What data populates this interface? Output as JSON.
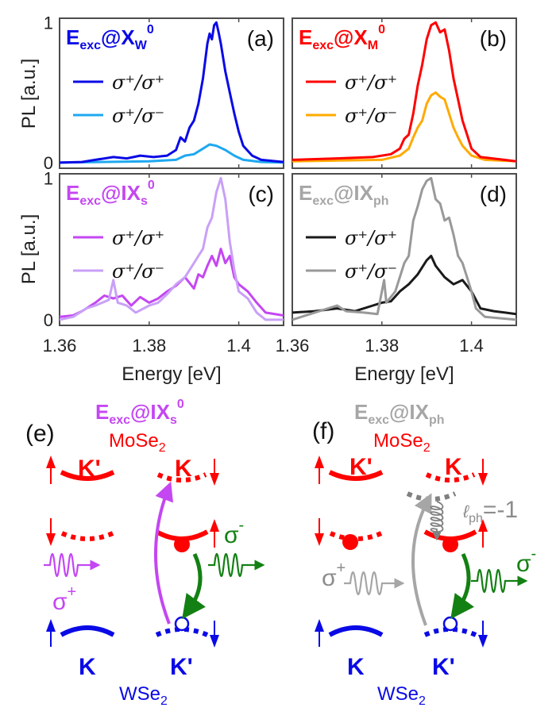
{
  "chart_data": [
    {
      "type": "line",
      "panel_label": "(a)",
      "annotation": {
        "main": "E",
        "sub": "exc",
        "at": "@X",
        "sub2": "W",
        "sup": "0",
        "color": "#0a0ae6"
      },
      "xlabel": "",
      "ylabel": "PL [a.u.]",
      "xlim": [
        1.36,
        1.41
      ],
      "ylim": [
        -0.04,
        1.03
      ],
      "yticks": [
        0,
        1
      ],
      "ytick_labels": [
        "0",
        "1"
      ],
      "xticks": [
        1.36,
        1.38,
        1.4
      ],
      "xtick_labels": [],
      "legend": "top-left",
      "series": [
        {
          "name": "σ⁺/σ⁺",
          "color": "#0a0ae6",
          "points": [
            [
              1.36,
              0
            ],
            [
              1.365,
              0.005
            ],
            [
              1.368,
              0.02
            ],
            [
              1.372,
              0.04
            ],
            [
              1.375,
              0.03
            ],
            [
              1.378,
              0.05
            ],
            [
              1.381,
              0.04
            ],
            [
              1.384,
              0.05
            ],
            [
              1.386,
              0.09
            ],
            [
              1.387,
              0.18
            ],
            [
              1.388,
              0.15
            ],
            [
              1.389,
              0.25
            ],
            [
              1.39,
              0.3
            ],
            [
              1.391,
              0.42
            ],
            [
              1.392,
              0.6
            ],
            [
              1.393,
              0.85
            ],
            [
              1.3935,
              0.92
            ],
            [
              1.394,
              0.88
            ],
            [
              1.3945,
              0.98
            ],
            [
              1.395,
              1.0
            ],
            [
              1.3955,
              0.93
            ],
            [
              1.396,
              0.85
            ],
            [
              1.397,
              0.65
            ],
            [
              1.398,
              0.5
            ],
            [
              1.399,
              0.35
            ],
            [
              1.4,
              0.22
            ],
            [
              1.401,
              0.12
            ],
            [
              1.403,
              0.05
            ],
            [
              1.405,
              0.02
            ],
            [
              1.41,
              0.005
            ]
          ]
        },
        {
          "name": "σ⁺/σ⁻",
          "color": "#1ea8f0",
          "points": [
            [
              1.36,
              0
            ],
            [
              1.38,
              0.01
            ],
            [
              1.386,
              0.02
            ],
            [
              1.388,
              0.05
            ],
            [
              1.39,
              0.06
            ],
            [
              1.392,
              0.1
            ],
            [
              1.3935,
              0.13
            ],
            [
              1.395,
              0.12
            ],
            [
              1.397,
              0.09
            ],
            [
              1.399,
              0.05
            ],
            [
              1.401,
              0.02
            ],
            [
              1.405,
              0.005
            ],
            [
              1.41,
              0
            ]
          ]
        }
      ]
    },
    {
      "type": "line",
      "panel_label": "(b)",
      "annotation": {
        "main": "E",
        "sub": "exc",
        "at": "@X",
        "sub2": "M",
        "sup": "0",
        "color": "#ff0000"
      },
      "xlabel": "",
      "ylabel": "",
      "xlim": [
        1.36,
        1.41
      ],
      "ylim": [
        -0.04,
        1.03
      ],
      "yticks": [
        0,
        1
      ],
      "ytick_labels": [],
      "xticks": [
        1.36,
        1.38,
        1.4
      ],
      "xtick_labels": [],
      "legend": "top-left",
      "series": [
        {
          "name": "σ⁺/σ⁺",
          "color": "#ff0000",
          "points": [
            [
              1.36,
              0.02
            ],
            [
              1.37,
              0.03
            ],
            [
              1.378,
              0.04
            ],
            [
              1.382,
              0.06
            ],
            [
              1.384,
              0.1
            ],
            [
              1.385,
              0.17
            ],
            [
              1.386,
              0.2
            ],
            [
              1.387,
              0.35
            ],
            [
              1.388,
              0.55
            ],
            [
              1.389,
              0.7
            ],
            [
              1.39,
              0.88
            ],
            [
              1.391,
              0.98
            ],
            [
              1.392,
              1.0
            ],
            [
              1.393,
              0.93
            ],
            [
              1.394,
              0.95
            ],
            [
              1.395,
              0.8
            ],
            [
              1.396,
              0.6
            ],
            [
              1.397,
              0.45
            ],
            [
              1.398,
              0.3
            ],
            [
              1.399,
              0.2
            ],
            [
              1.4,
              0.1
            ],
            [
              1.402,
              0.04
            ],
            [
              1.41,
              0.01
            ]
          ]
        },
        {
          "name": "σ⁺/σ⁻",
          "color": "#ffaa00",
          "points": [
            [
              1.36,
              0.01
            ],
            [
              1.38,
              0.02
            ],
            [
              1.384,
              0.05
            ],
            [
              1.386,
              0.1
            ],
            [
              1.387,
              0.18
            ],
            [
              1.388,
              0.25
            ],
            [
              1.389,
              0.3
            ],
            [
              1.39,
              0.42
            ],
            [
              1.391,
              0.48
            ],
            [
              1.392,
              0.5
            ],
            [
              1.393,
              0.47
            ],
            [
              1.394,
              0.45
            ],
            [
              1.395,
              0.35
            ],
            [
              1.396,
              0.25
            ],
            [
              1.397,
              0.18
            ],
            [
              1.398,
              0.12
            ],
            [
              1.4,
              0.05
            ],
            [
              1.403,
              0.02
            ],
            [
              1.41,
              0.01
            ]
          ]
        }
      ]
    },
    {
      "type": "line",
      "panel_label": "(c)",
      "annotation": {
        "main": "E",
        "sub": "exc",
        "at": "@IX",
        "sub2": "s",
        "sup": "0",
        "color": "#c447f2"
      },
      "xlabel": "Energy [eV]",
      "ylabel": "PL [a.u.]",
      "xlim": [
        1.36,
        1.41
      ],
      "ylim": [
        -0.04,
        1.03
      ],
      "yticks": [
        0,
        1
      ],
      "ytick_labels": [
        "0",
        "1"
      ],
      "xticks": [
        1.36,
        1.38,
        1.4
      ],
      "xtick_labels": [
        "1.36",
        "1.38",
        "1.4"
      ],
      "legend": "top-left",
      "series": [
        {
          "name": "σ⁺/σ⁺",
          "color": "#c447f2",
          "points": [
            [
              1.36,
              0.02
            ],
            [
              1.363,
              0.03
            ],
            [
              1.365,
              0.06
            ],
            [
              1.368,
              0.12
            ],
            [
              1.37,
              0.17
            ],
            [
              1.372,
              0.15
            ],
            [
              1.374,
              0.17
            ],
            [
              1.376,
              0.1
            ],
            [
              1.378,
              0.16
            ],
            [
              1.38,
              0.12
            ],
            [
              1.382,
              0.15
            ],
            [
              1.384,
              0.2
            ],
            [
              1.386,
              0.24
            ],
            [
              1.388,
              0.3
            ],
            [
              1.39,
              0.22
            ],
            [
              1.391,
              0.32
            ],
            [
              1.392,
              0.3
            ],
            [
              1.393,
              0.38
            ],
            [
              1.394,
              0.45
            ],
            [
              1.395,
              0.38
            ],
            [
              1.396,
              0.5
            ],
            [
              1.397,
              0.4
            ],
            [
              1.398,
              0.45
            ],
            [
              1.399,
              0.3
            ],
            [
              1.4,
              0.25
            ],
            [
              1.402,
              0.2
            ],
            [
              1.404,
              0.12
            ],
            [
              1.406,
              0.05
            ],
            [
              1.41,
              0.03
            ]
          ]
        },
        {
          "name": "σ⁺/σ⁻",
          "color": "#c9a0f7",
          "points": [
            [
              1.36,
              0
            ],
            [
              1.363,
              0.02
            ],
            [
              1.366,
              0.08
            ],
            [
              1.368,
              0.1
            ],
            [
              1.371,
              0.14
            ],
            [
              1.372,
              0.28
            ],
            [
              1.373,
              0.12
            ],
            [
              1.375,
              0.1
            ],
            [
              1.377,
              0.05
            ],
            [
              1.38,
              0.1
            ],
            [
              1.382,
              0.12
            ],
            [
              1.384,
              0.18
            ],
            [
              1.386,
              0.25
            ],
            [
              1.388,
              0.3
            ],
            [
              1.39,
              0.4
            ],
            [
              1.391,
              0.45
            ],
            [
              1.392,
              0.5
            ],
            [
              1.393,
              0.65
            ],
            [
              1.394,
              0.72
            ],
            [
              1.395,
              0.9
            ],
            [
              1.396,
              1.0
            ],
            [
              1.397,
              0.85
            ],
            [
              1.398,
              0.55
            ],
            [
              1.399,
              0.35
            ],
            [
              1.4,
              0.2
            ],
            [
              1.402,
              0.15
            ],
            [
              1.404,
              0.05
            ],
            [
              1.406,
              0
            ],
            [
              1.41,
              0
            ]
          ]
        }
      ]
    },
    {
      "type": "line",
      "panel_label": "(d)",
      "annotation": {
        "main": "E",
        "sub": "exc",
        "at": "@IX",
        "sub2": "ph",
        "sup": "",
        "color": "#a6a6a6"
      },
      "xlabel": "Energy [eV]",
      "ylabel": "",
      "xlim": [
        1.36,
        1.41
      ],
      "ylim": [
        -0.04,
        1.03
      ],
      "yticks": [
        0,
        1
      ],
      "ytick_labels": [],
      "xticks": [
        1.36,
        1.38,
        1.4
      ],
      "xtick_labels": [
        "1.36",
        "1.38",
        "1.4"
      ],
      "legend": "top-left",
      "series": [
        {
          "name": "σ⁺/σ⁺",
          "color": "#1a1a1a",
          "points": [
            [
              1.36,
              0.05
            ],
            [
              1.365,
              0.06
            ],
            [
              1.37,
              0.08
            ],
            [
              1.374,
              0.06
            ],
            [
              1.378,
              0.1
            ],
            [
              1.38,
              0.12
            ],
            [
              1.382,
              0.13
            ],
            [
              1.384,
              0.2
            ],
            [
              1.386,
              0.25
            ],
            [
              1.388,
              0.32
            ],
            [
              1.39,
              0.42
            ],
            [
              1.391,
              0.45
            ],
            [
              1.392,
              0.38
            ],
            [
              1.394,
              0.3
            ],
            [
              1.396,
              0.25
            ],
            [
              1.398,
              0.28
            ],
            [
              1.4,
              0.2
            ],
            [
              1.402,
              0.08
            ],
            [
              1.405,
              0.06
            ],
            [
              1.41,
              0.04
            ]
          ]
        },
        {
          "name": "σ⁺/σ⁻",
          "color": "#999999",
          "points": [
            [
              1.36,
              0
            ],
            [
              1.365,
              0.05
            ],
            [
              1.37,
              0.1
            ],
            [
              1.372,
              0.06
            ],
            [
              1.376,
              0.05
            ],
            [
              1.379,
              0.04
            ],
            [
              1.3805,
              0.28
            ],
            [
              1.381,
              0.12
            ],
            [
              1.383,
              0.2
            ],
            [
              1.385,
              0.4
            ],
            [
              1.386,
              0.45
            ],
            [
              1.387,
              0.7
            ],
            [
              1.388,
              0.8
            ],
            [
              1.389,
              0.92
            ],
            [
              1.39,
              0.98
            ],
            [
              1.391,
              1.0
            ],
            [
              1.392,
              0.85
            ],
            [
              1.393,
              0.82
            ],
            [
              1.394,
              0.7
            ],
            [
              1.395,
              0.72
            ],
            [
              1.396,
              0.6
            ],
            [
              1.397,
              0.45
            ],
            [
              1.398,
              0.4
            ],
            [
              1.399,
              0.3
            ],
            [
              1.4,
              0.2
            ],
            [
              1.401,
              0.08
            ],
            [
              1.403,
              0.02
            ],
            [
              1.41,
              0
            ]
          ]
        }
      ]
    }
  ],
  "diagrams": {
    "e": {
      "label": "(e)",
      "title": {
        "main": "E",
        "sub": "exc",
        "at": "@IX",
        "sub2": "s",
        "sup": "0",
        "color": "#c447f2"
      },
      "top_layer": {
        "name": "MoSe",
        "sub": "2",
        "color": "#ff0000"
      },
      "bottom_layer": {
        "name": "WSe",
        "sub": "2",
        "color": "#0a0ae6"
      },
      "valleys": {
        "top_left": "K'",
        "top_right": "K",
        "bottom_left": "K",
        "bottom_right": "K'"
      },
      "excitation": {
        "symbol": "σ",
        "sup": "+",
        "color": "#c447f2"
      },
      "emission": {
        "symbol": "σ",
        "sup": "-",
        "color": "#138013"
      }
    },
    "f": {
      "label": "(f)",
      "title": {
        "main": "E",
        "sub": "exc",
        "at": "@IX",
        "sub2": "ph",
        "color": "#a6a6a6"
      },
      "top_layer": {
        "name": "MoSe",
        "sub": "2",
        "color": "#ff0000"
      },
      "bottom_layer": {
        "name": "WSe",
        "sub": "2",
        "color": "#0a0ae6"
      },
      "valleys": {
        "top_left": "K'",
        "top_right": "K",
        "bottom_left": "K",
        "bottom_right": "K'"
      },
      "excitation": {
        "symbol": "σ",
        "sup": "+",
        "color": "#8c8c8c"
      },
      "emission": {
        "symbol": "σ",
        "sup": "-",
        "color": "#138013"
      },
      "phonon": {
        "symbol": "ℓ",
        "sub": "ph",
        "value": "=-1",
        "color": "#8c8c8c"
      }
    }
  }
}
